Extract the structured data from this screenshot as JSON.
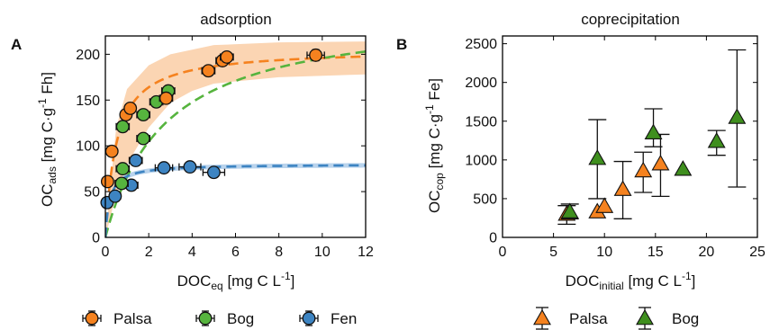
{
  "colors": {
    "palsa": "#f5821f",
    "bog": "#56b43e",
    "bog_dark": "#3f8f1e",
    "fen": "#3d84c2",
    "band": "#fbd5b3",
    "band_fen": "#b9d3ec",
    "axis": "#000000"
  },
  "chart_data": [
    {
      "type": "scatter",
      "panel_label": "A",
      "title": "adsorption",
      "xlabel": {
        "main": "DOC",
        "sub": "eq",
        "unit": " [mg C L",
        "sup": "-1",
        "close": "]"
      },
      "ylabel": {
        "main": "OC",
        "sub": "ads",
        "unit": " [mg C·g",
        "sup": "-1",
        "close": " Fh]"
      },
      "xlim": [
        0,
        12
      ],
      "ylim": [
        0,
        220
      ],
      "xticks": [
        0,
        2,
        4,
        6,
        8,
        10,
        12
      ],
      "yticks": [
        0,
        50,
        100,
        150,
        200
      ],
      "legend_placement": "bottom",
      "series": [
        {
          "name": "Palsa",
          "marker": "circle",
          "color_key": "palsa",
          "points": [
            {
              "x": 0.1,
              "y": 61,
              "xerr": 0.15,
              "yerr": 3
            },
            {
              "x": 0.3,
              "y": 94,
              "xerr": 0.15,
              "yerr": 3
            },
            {
              "x": 0.95,
              "y": 134,
              "xerr": 0.2,
              "yerr": 5
            },
            {
              "x": 1.15,
              "y": 141,
              "xerr": 0.2,
              "yerr": 5
            },
            {
              "x": 2.8,
              "y": 152,
              "xerr": 0.3,
              "yerr": 5
            },
            {
              "x": 4.75,
              "y": 182,
              "xerr": 0.3,
              "yerr": 5
            },
            {
              "x": 5.4,
              "y": 193,
              "xerr": 0.3,
              "yerr": 5
            },
            {
              "x": 5.6,
              "y": 197,
              "xerr": 0.3,
              "yerr": 5
            },
            {
              "x": 9.7,
              "y": 199,
              "xerr": 0.4,
              "yerr": 6
            }
          ],
          "fit": {
            "type": "langmuir",
            "qmax": 206,
            "K": 1.95
          },
          "band": {
            "upper": [
              [
                0,
                0
              ],
              [
                0.5,
                120
              ],
              [
                1,
                162
              ],
              [
                2,
                188
              ],
              [
                3,
                200
              ],
              [
                5,
                210
              ],
              [
                8,
                213
              ],
              [
                12,
                214
              ]
            ],
            "lower": [
              [
                12,
                178
              ],
              [
                8,
                175
              ],
              [
                5,
                168
              ],
              [
                4,
                160
              ],
              [
                3,
                147
              ],
              [
                2,
                120
              ],
              [
                1,
                80
              ],
              [
                0.5,
                48
              ],
              [
                0,
                0
              ]
            ]
          }
        },
        {
          "name": "Bog",
          "marker": "circle",
          "color_key": "bog",
          "points": [
            {
              "x": 0.75,
              "y": 59,
              "xerr": 0.3,
              "yerr": 4
            },
            {
              "x": 0.8,
              "y": 75,
              "xerr": 0.3,
              "yerr": 4
            },
            {
              "x": 0.8,
              "y": 121,
              "xerr": 0.3,
              "yerr": 5
            },
            {
              "x": 1.75,
              "y": 108,
              "xerr": 0.3,
              "yerr": 4
            },
            {
              "x": 1.75,
              "y": 134,
              "xerr": 0.3,
              "yerr": 5
            },
            {
              "x": 2.35,
              "y": 148,
              "xerr": 0.3,
              "yerr": 5
            },
            {
              "x": 2.9,
              "y": 160,
              "xerr": 0.3,
              "yerr": 5
            }
          ],
          "fit": {
            "type": "langmuir",
            "qmax": 250,
            "K": 0.36
          }
        },
        {
          "name": "Fen",
          "marker": "circle",
          "color_key": "fen",
          "points": [
            {
              "x": 0.08,
              "y": 38,
              "xerr": 0.15,
              "yerr": 3
            },
            {
              "x": 0.45,
              "y": 45,
              "xerr": 0.25,
              "yerr": 3
            },
            {
              "x": 1.2,
              "y": 57,
              "xerr": 0.3,
              "yerr": 3
            },
            {
              "x": 1.4,
              "y": 84,
              "xerr": 0.3,
              "yerr": 3
            },
            {
              "x": 2.7,
              "y": 76,
              "xerr": 0.4,
              "yerr": 3
            },
            {
              "x": 3.9,
              "y": 77,
              "xerr": 0.5,
              "yerr": 3
            },
            {
              "x": 5.0,
              "y": 71,
              "xerr": 0.5,
              "yerr": 3
            }
          ],
          "fit": {
            "type": "langmuir",
            "qmax": 80,
            "K": 5
          }
        }
      ]
    },
    {
      "type": "scatter",
      "panel_label": "B",
      "title": "coprecipitation",
      "xlabel": {
        "main": "DOC",
        "sub": "initial",
        "unit": " [mg C L",
        "sup": "-1",
        "close": "]"
      },
      "ylabel": {
        "main": "OC",
        "sub": "cop",
        "unit": " [mg C·g",
        "sup": "-1",
        "close": " Fe]"
      },
      "xlim": [
        0,
        25
      ],
      "ylim": [
        0,
        2600
      ],
      "xticks": [
        0,
        5,
        10,
        15,
        20,
        25
      ],
      "yticks": [
        0,
        500,
        1000,
        1500,
        2000,
        2500
      ],
      "legend_placement": "bottom",
      "series": [
        {
          "name": "Palsa",
          "marker": "triangle",
          "color_key": "palsa",
          "points": [
            {
              "x": 6.3,
              "y": 300,
              "yerr_low": 130,
              "yerr_high": 110
            },
            {
              "x": 9.3,
              "y": 330,
              "yerr_low": 0,
              "yerr_high": 0
            },
            {
              "x": 10.0,
              "y": 400,
              "yerr_low": 0,
              "yerr_high": 0
            },
            {
              "x": 11.8,
              "y": 620,
              "yerr_low": 380,
              "yerr_high": 360
            },
            {
              "x": 13.8,
              "y": 860,
              "yerr_low": 280,
              "yerr_high": 240
            },
            {
              "x": 15.5,
              "y": 950,
              "yerr_low": 420,
              "yerr_high": 380
            }
          ]
        },
        {
          "name": "Bog",
          "marker": "triangle",
          "color_key": "bog_dark",
          "points": [
            {
              "x": 6.6,
              "y": 330,
              "yerr_low": 90,
              "yerr_high": 100
            },
            {
              "x": 9.3,
              "y": 1020,
              "yerr_low": 520,
              "yerr_high": 500
            },
            {
              "x": 14.8,
              "y": 1350,
              "yerr_low": 180,
              "yerr_high": 310
            },
            {
              "x": 17.7,
              "y": 880,
              "yerr_low": 0,
              "yerr_high": 0
            },
            {
              "x": 21.0,
              "y": 1240,
              "yerr_low": 180,
              "yerr_high": 140
            },
            {
              "x": 23.0,
              "y": 1550,
              "yerr_low": 900,
              "yerr_high": 870
            }
          ]
        }
      ]
    }
  ]
}
